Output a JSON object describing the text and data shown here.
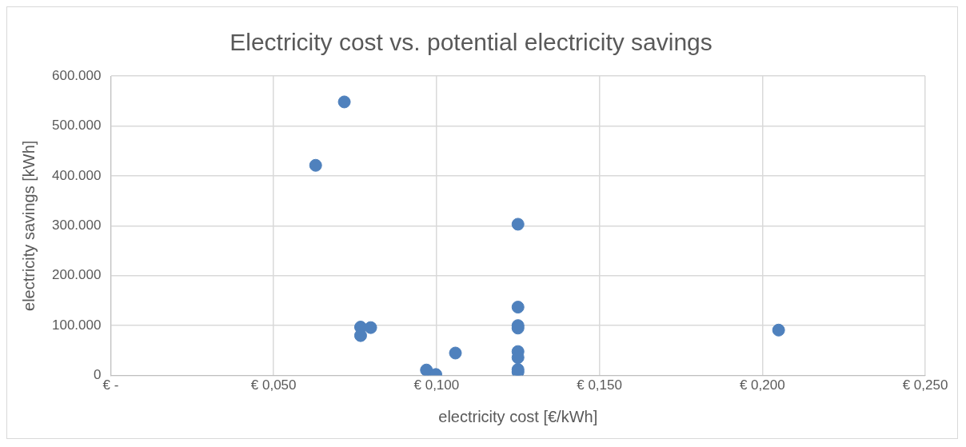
{
  "chart_data": {
    "type": "scatter",
    "title": "Electricity cost vs. potential electricity savings",
    "xlabel": "electricity cost [€/kWh]",
    "ylabel": "electricity savings [kWh]",
    "series": [
      {
        "color": "#4f81bd",
        "x": [
          0.0717,
          0.0629,
          0.0767,
          0.0767,
          0.0798,
          0.0969,
          0.0998,
          0.1058,
          0.125,
          0.125,
          0.125,
          0.125,
          0.125,
          0.125,
          0.125,
          0.125,
          0.205
        ],
        "values": [
          548000,
          421000,
          97000,
          80000,
          96000,
          11000,
          2000,
          45000,
          303000,
          137000,
          100000,
          95000,
          48000,
          36000,
          12000,
          7000,
          91000
        ]
      }
    ],
    "xlim": [
      0,
      0.25
    ],
    "xticks": [
      {
        "value": 0,
        "label": "€ -"
      },
      {
        "value": 0.05,
        "label": "€ 0,050"
      },
      {
        "value": 0.1,
        "label": "€ 0,100"
      },
      {
        "value": 0.15,
        "label": "€ 0,150"
      },
      {
        "value": 0.2,
        "label": "€ 0,200"
      },
      {
        "value": 0.25,
        "label": "€ 0,250"
      }
    ],
    "ylim": [
      0,
      600000
    ],
    "yticks": [
      {
        "value": 0,
        "label": "0"
      },
      {
        "value": 100000,
        "label": "100.000"
      },
      {
        "value": 200000,
        "label": "200.000"
      },
      {
        "value": 300000,
        "label": "300.000"
      },
      {
        "value": 400000,
        "label": "400.000"
      },
      {
        "value": 500000,
        "label": "500.000"
      },
      {
        "value": 600000,
        "label": "600.000"
      }
    ],
    "grid": true,
    "legend": false,
    "marker": "circle"
  }
}
